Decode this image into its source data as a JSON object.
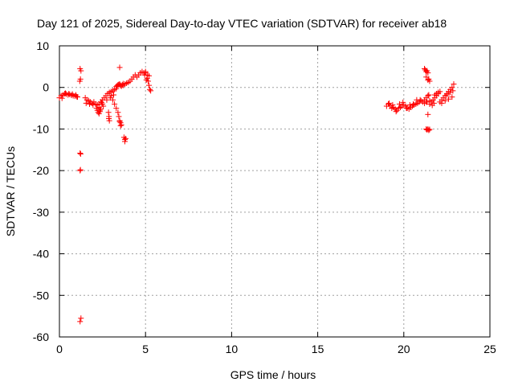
{
  "chart_data": {
    "type": "scatter",
    "title": "Day 121 of 2025, Sidereal Day-to-day VTEC variation (SDTVAR) for receiver ab18",
    "xlabel": "GPS time / hours",
    "ylabel": "SDTVAR / TECUs",
    "xlim": [
      0,
      25
    ],
    "ylim": [
      -60,
      10
    ],
    "xticks": [
      0,
      5,
      10,
      15,
      20,
      25
    ],
    "xtick_labels": [
      "0",
      "5",
      "10",
      "15",
      "20",
      "25"
    ],
    "yticks": [
      10,
      0,
      -10,
      -20,
      -30,
      -40,
      -50,
      -60
    ],
    "ytick_labels": [
      "10",
      "0",
      "-10",
      "-20",
      "-30",
      "-40",
      "-50",
      "-60"
    ],
    "grid": true,
    "marker": "plus",
    "color": "#ff0000",
    "series": [
      {
        "name": "SDTVAR",
        "x": [
          0.0,
          0.1,
          0.2,
          0.3,
          0.4,
          0.5,
          0.6,
          0.7,
          0.8,
          0.9,
          1.0,
          1.05,
          0.15,
          0.35,
          0.55,
          0.75,
          0.95,
          1.2,
          1.25,
          1.22,
          1.18,
          1.2,
          1.23,
          1.2,
          1.22,
          1.25,
          1.2,
          1.5,
          1.6,
          1.7,
          1.8,
          1.9,
          2.0,
          2.1,
          2.2,
          2.3,
          2.4,
          2.5,
          2.6,
          2.7,
          2.8,
          2.9,
          3.0,
          3.1,
          3.2,
          3.3,
          1.55,
          1.75,
          1.95,
          2.15,
          2.35,
          2.55,
          2.75,
          2.95,
          3.15,
          2.2,
          2.25,
          2.3,
          2.35,
          2.4,
          2.3,
          2.5,
          2.45,
          2.85,
          2.88,
          2.9,
          2.87,
          3.0,
          3.1,
          3.2,
          3.3,
          3.4,
          3.45,
          3.5,
          3.55,
          3.6,
          3.5,
          3.55,
          3.3,
          3.35,
          3.4,
          3.45,
          3.5,
          3.55,
          3.6,
          3.65,
          3.7,
          3.75,
          3.8,
          3.85,
          3.8,
          3.5,
          3.7,
          3.8,
          3.9,
          4.0,
          4.1,
          4.2,
          4.3,
          4.4,
          4.5,
          4.6,
          4.7,
          4.8,
          4.9,
          5.0,
          5.1,
          5.2,
          5.15,
          5.2,
          5.25,
          5.3,
          5.05,
          5.1,
          4.95,
          5.0,
          19.0,
          19.1,
          19.2,
          19.3,
          19.4,
          19.5,
          19.6,
          19.7,
          19.8,
          19.9,
          20.0,
          20.1,
          20.2,
          20.3,
          20.4,
          20.5,
          20.6,
          20.7,
          20.8,
          20.9,
          21.0,
          21.1,
          21.2,
          21.3,
          21.5,
          19.15,
          19.35,
          19.55,
          19.75,
          19.95,
          20.15,
          20.35,
          20.55,
          20.75,
          20.95,
          21.2,
          21.25,
          21.3,
          21.35,
          21.4,
          21.45,
          21.5,
          21.3,
          21.4,
          21.2,
          21.3,
          21.4,
          21.45,
          21.35,
          21.3,
          21.35,
          21.4,
          21.45,
          21.5,
          21.4,
          21.5,
          21.6,
          21.7,
          21.8,
          21.9,
          22.0,
          21.65,
          21.75,
          21.8,
          21.9,
          22.0,
          22.1,
          22.1,
          22.2,
          22.3,
          22.4,
          22.5,
          22.6,
          22.7,
          22.8,
          22.9,
          22.2,
          22.4,
          22.6,
          22.8,
          22.5,
          22.7,
          22.85
        ],
        "y": [
          -2.5,
          -2.0,
          -1.8,
          -1.5,
          -1.6,
          -1.8,
          -1.7,
          -1.9,
          -2.0,
          -2.1,
          -2.2,
          -2.3,
          -2.6,
          -1.4,
          -1.5,
          -1.6,
          -1.8,
          4.5,
          4.0,
          2.0,
          1.5,
          -15.8,
          -16.0,
          -20.0,
          -19.8,
          -55.5,
          -56.3,
          -2.5,
          -3.0,
          -3.2,
          -3.5,
          -3.8,
          -3.5,
          -4.0,
          -4.2,
          -4.0,
          -3.5,
          -3.0,
          -2.5,
          -2.0,
          -1.5,
          -1.2,
          -1.0,
          -0.8,
          -0.5,
          -0.3,
          -3.8,
          -4.0,
          -4.2,
          -5.0,
          -5.5,
          -4.5,
          -3.0,
          -2.5,
          -1.8,
          -5.5,
          -6.0,
          -6.3,
          -5.8,
          -5.2,
          -4.8,
          -4.0,
          -3.6,
          -6.0,
          -7.0,
          -8.0,
          -7.5,
          -2.0,
          -3.0,
          -4.0,
          -5.0,
          -6.0,
          -7.0,
          -8.0,
          -8.5,
          -9.0,
          -8.2,
          -9.2,
          0.2,
          0.4,
          0.6,
          0.7,
          0.8,
          0.5,
          0.3,
          0.6,
          0.9,
          -12.0,
          -12.5,
          -12.3,
          -13.0,
          4.8,
          0.5,
          0.8,
          1.0,
          1.2,
          1.5,
          2.0,
          2.5,
          3.0,
          2.5,
          3.0,
          3.5,
          3.8,
          3.5,
          3.8,
          3.0,
          2.8,
          1.5,
          0.5,
          -0.5,
          -0.8,
          1.8,
          2.2,
          3.0,
          3.5,
          -4.5,
          -4.0,
          -4.5,
          -5.0,
          -4.8,
          -5.2,
          -5.5,
          -5.0,
          -4.8,
          -4.5,
          -4.2,
          -4.5,
          -5.0,
          -5.2,
          -4.8,
          -4.5,
          -4.2,
          -4.0,
          -3.8,
          -3.5,
          -3.2,
          -3.5,
          -3.8,
          -3.5,
          -3.2,
          -3.8,
          -4.2,
          -5.8,
          -4.0,
          -3.6,
          -5.0,
          -4.2,
          -4.0,
          -3.0,
          -3.0,
          4.5,
          4.2,
          3.8,
          4.0,
          3.5,
          2.0,
          1.5,
          2.5,
          1.8,
          -3.0,
          -2.5,
          -2.0,
          -1.8,
          -3.5,
          -10.0,
          -10.2,
          -10.0,
          -10.3,
          -10.1,
          -6.5,
          -4.0,
          -3.5,
          -3.0,
          -2.5,
          -2.0,
          -1.5,
          -4.3,
          -3.8,
          -1.8,
          -1.5,
          -1.2,
          -1.0,
          -3.5,
          -3.0,
          -2.5,
          -2.0,
          -1.5,
          -1.0,
          -0.5,
          0.0,
          0.8,
          -3.8,
          -3.2,
          -2.8,
          -2.3,
          -1.8,
          -1.2,
          -0.8
        ]
      }
    ]
  }
}
